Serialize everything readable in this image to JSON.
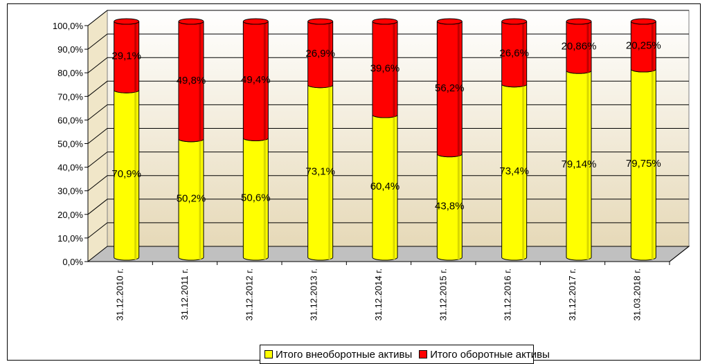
{
  "chart_data": {
    "type": "bar",
    "stacked": true,
    "percent": true,
    "three_d": true,
    "categories": [
      "31.12.2010 г.",
      "31.12.2011 г.",
      "31.12.2012 г.",
      "31.12.2013 г.",
      "31.12.2014 г.",
      "31.12.2015 г.",
      "31.12.2016 г.",
      "31.12.2017 г.",
      "31.03.2018 г."
    ],
    "series": [
      {
        "name": "Итого внеоборотные активы",
        "color": "#ffff00",
        "values": [
          70.9,
          50.2,
          50.6,
          73.1,
          60.4,
          43.8,
          73.4,
          79.14,
          79.75
        ],
        "labels": [
          "70,9%",
          "50,2%",
          "50,6%",
          "73,1%",
          "60,4%",
          "43,8%",
          "73,4%",
          "79,14%",
          "79,75%"
        ]
      },
      {
        "name": "Итого оборотные активы",
        "color": "#ff0000",
        "values": [
          29.1,
          49.8,
          49.4,
          26.9,
          39.6,
          56.2,
          26.6,
          20.86,
          20.25
        ],
        "labels": [
          "29,1%",
          "49,8%",
          "49,4%",
          "26,9%",
          "39,6%",
          "56,2%",
          "26,6%",
          "20,86%",
          "20,25%"
        ]
      }
    ],
    "y_ticks": [
      "0,0%",
      "10,0%",
      "20,0%",
      "30,0%",
      "40,0%",
      "50,0%",
      "60,0%",
      "70,0%",
      "80,0%",
      "90,0%",
      "100,0%"
    ],
    "ylim": [
      0,
      100
    ],
    "grid": true,
    "legend_position": "bottom",
    "wall_color": "#f0e6c8",
    "floor_color": "#c0c0c0"
  }
}
